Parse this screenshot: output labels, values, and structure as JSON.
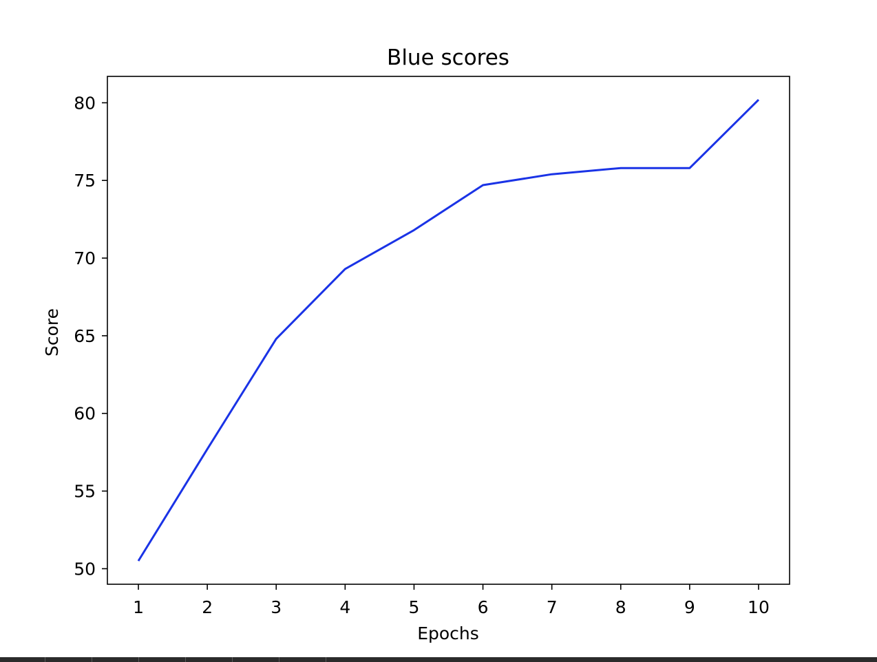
{
  "chart_data": {
    "type": "line",
    "title": "Blue scores",
    "xlabel": "Epochs",
    "ylabel": "Score",
    "x": [
      1,
      2,
      3,
      4,
      5,
      6,
      7,
      8,
      9,
      10
    ],
    "series": [
      {
        "values": [
          50.5,
          57.7,
          64.8,
          69.3,
          71.8,
          74.7,
          75.4,
          75.8,
          75.8,
          80.2
        ],
        "color": "#1a33e6"
      }
    ],
    "xticks": [
      "1",
      "2",
      "3",
      "4",
      "5",
      "6",
      "7",
      "8",
      "9",
      "10"
    ],
    "yticks": [
      "50",
      "55",
      "60",
      "65",
      "70",
      "75",
      "80"
    ],
    "xlim": [
      0.55,
      10.45
    ],
    "ylim": [
      49.0,
      81.7
    ],
    "grid": false,
    "legend": "none"
  }
}
